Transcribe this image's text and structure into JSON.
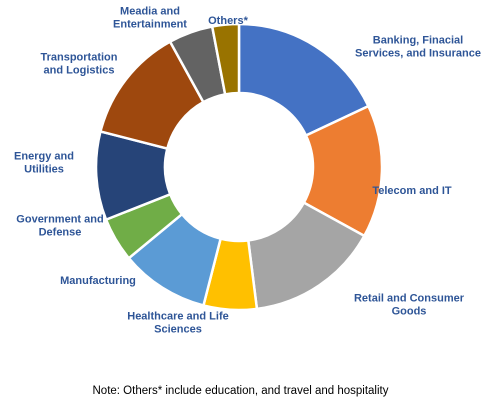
{
  "chart_data": {
    "type": "pie",
    "donut": true,
    "title": "",
    "slices": [
      {
        "label": "Banking, Finacial Services, and Insurance",
        "value": 18,
        "color": "#4472c4"
      },
      {
        "label": "Telecom and IT",
        "value": 15,
        "color": "#ed7d31"
      },
      {
        "label": "Retail and Consumer Goods",
        "value": 15,
        "color": "#a5a5a5"
      },
      {
        "label": "Healthcare and Life Sciences",
        "value": 6,
        "color": "#ffc000"
      },
      {
        "label": "Manufacturing",
        "value": 10,
        "color": "#5b9bd5"
      },
      {
        "label": "Government and Defense",
        "value": 5,
        "color": "#70ad47"
      },
      {
        "label": "Energy and Utilities",
        "value": 10,
        "color": "#264478"
      },
      {
        "label": "Transportation and Logistics",
        "value": 13,
        "color": "#9e480e"
      },
      {
        "label": "Meadia and Entertainment",
        "value": 5,
        "color": "#636363"
      },
      {
        "label": "Others*",
        "value": 3,
        "color": "#997300"
      }
    ]
  },
  "note": "Note: Others* include education, and travel and hospitality"
}
